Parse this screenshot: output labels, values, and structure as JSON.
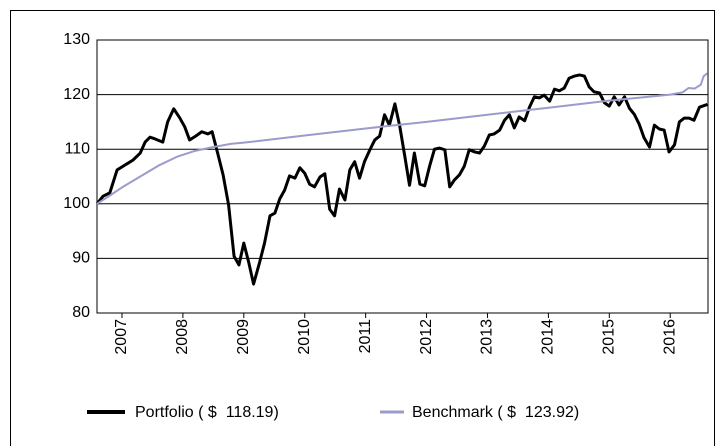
{
  "chart_data": {
    "type": "line",
    "xlim": [
      2006.59,
      2016.62
    ],
    "xticks": [
      2007,
      2008,
      2009,
      2010,
      2011,
      2012,
      2013,
      2014,
      2015,
      2016
    ],
    "ylim": [
      80,
      130
    ],
    "yticks": [
      80,
      90,
      100,
      110,
      120,
      130
    ],
    "grid": true,
    "legend": "bottom",
    "series": [
      {
        "name": "Portfolio ( $  118.19)",
        "color": "#000000",
        "width": 3,
        "x": [
          2006.59,
          2006.69,
          2006.8,
          2006.92,
          2007.05,
          2007.18,
          2007.3,
          2007.38,
          2007.46,
          2007.54,
          2007.67,
          2007.75,
          2007.85,
          2007.95,
          2008.03,
          2008.11,
          2008.21,
          2008.31,
          2008.41,
          2008.48,
          2008.57,
          2008.66,
          2008.75,
          2008.84,
          2008.92,
          2009.0,
          2009.08,
          2009.16,
          2009.26,
          2009.34,
          2009.43,
          2009.51,
          2009.59,
          2009.67,
          2009.75,
          2009.84,
          2009.92,
          2010.0,
          2010.08,
          2010.16,
          2010.25,
          2010.33,
          2010.41,
          2010.49,
          2010.57,
          2010.66,
          2010.74,
          2010.82,
          2010.9,
          2010.98,
          2011.07,
          2011.15,
          2011.23,
          2011.31,
          2011.39,
          2011.48,
          2011.56,
          2011.64,
          2011.72,
          2011.8,
          2011.89,
          2011.97,
          2012.05,
          2012.13,
          2012.21,
          2012.3,
          2012.38,
          2012.46,
          2012.54,
          2012.62,
          2012.7,
          2012.79,
          2012.87,
          2012.95,
          2013.03,
          2013.11,
          2013.2,
          2013.28,
          2013.36,
          2013.44,
          2013.52,
          2013.61,
          2013.69,
          2013.77,
          2013.85,
          2013.93,
          2014.02,
          2014.1,
          2014.18,
          2014.26,
          2014.34,
          2014.43,
          2014.51,
          2014.59,
          2014.67,
          2014.75,
          2014.84,
          2014.92,
          2015.0,
          2015.08,
          2015.16,
          2015.25,
          2015.33,
          2015.41,
          2015.49,
          2015.57,
          2015.66,
          2015.74,
          2015.82,
          2015.9,
          2015.98,
          2016.07,
          2016.15,
          2016.23,
          2016.31,
          2016.39,
          2016.48,
          2016.61
        ],
        "values": [
          100.0,
          101.4,
          102.0,
          106.2,
          107.1,
          108.0,
          109.3,
          111.3,
          112.2,
          111.9,
          111.3,
          115.0,
          117.4,
          115.7,
          114.1,
          111.7,
          112.4,
          113.2,
          112.8,
          113.2,
          109.3,
          105.3,
          99.8,
          90.4,
          88.8,
          92.8,
          89.3,
          85.3,
          89.3,
          92.8,
          97.8,
          98.3,
          100.9,
          102.5,
          105.1,
          104.7,
          106.6,
          105.6,
          103.6,
          103.1,
          104.9,
          105.5,
          99.0,
          97.8,
          102.7,
          100.7,
          106.2,
          107.7,
          104.7,
          107.7,
          109.9,
          111.7,
          112.4,
          116.3,
          114.4,
          118.3,
          114.2,
          108.9,
          103.4,
          109.3,
          103.6,
          103.3,
          106.9,
          110.0,
          110.2,
          109.9,
          103.1,
          104.4,
          105.3,
          106.9,
          109.9,
          109.5,
          109.3,
          110.6,
          112.6,
          112.8,
          113.5,
          115.3,
          116.3,
          113.9,
          115.9,
          115.2,
          117.7,
          119.6,
          119.4,
          119.9,
          118.8,
          121.0,
          120.7,
          121.2,
          123.0,
          123.4,
          123.6,
          123.4,
          121.4,
          120.5,
          120.3,
          118.5,
          117.9,
          119.6,
          118.1,
          119.6,
          117.5,
          116.4,
          114.6,
          112.1,
          110.4,
          114.4,
          113.7,
          113.5,
          109.5,
          110.8,
          115.0,
          115.7,
          115.7,
          115.3,
          117.7,
          118.2
        ]
      },
      {
        "name": "Benchmark ( $  123.92)",
        "color": "#9b9bcc",
        "width": 2,
        "x": [
          2006.59,
          2006.8,
          2007.0,
          2007.3,
          2007.6,
          2007.9,
          2008.2,
          2008.5,
          2008.8,
          2009.0,
          2010.0,
          2011.0,
          2012.0,
          2013.0,
          2014.0,
          2015.0,
          2016.0,
          2016.2,
          2016.3,
          2016.4,
          2016.5,
          2016.55,
          2016.61
        ],
        "values": [
          100,
          101.5,
          103,
          105,
          107,
          108.6,
          109.7,
          110.4,
          111,
          111.2,
          112.5,
          113.8,
          115,
          116.3,
          117.6,
          118.9,
          120,
          120.4,
          121.2,
          121.1,
          121.8,
          123.4,
          123.9
        ]
      }
    ]
  }
}
